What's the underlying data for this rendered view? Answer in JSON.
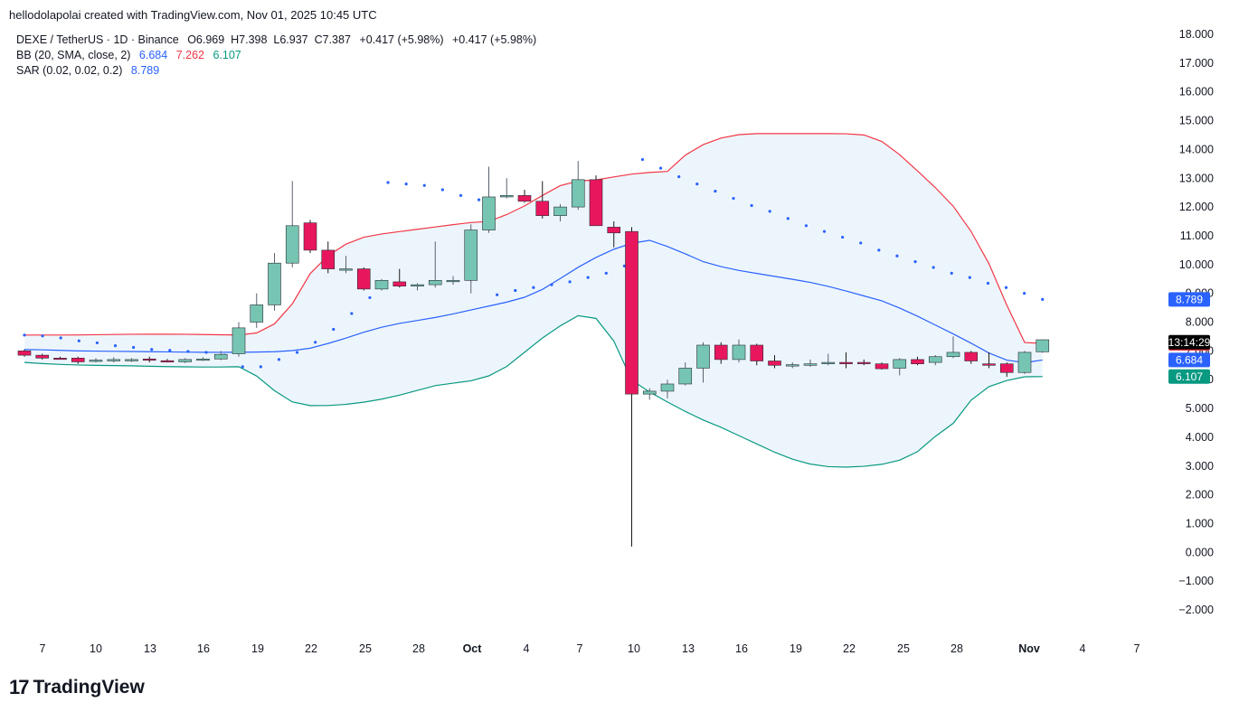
{
  "credit": "hellodolapolai created with TradingView.com, Nov 01, 2025 10:45 UTC",
  "legend": {
    "symbol": "DEXE / TetherUS · 1D · Binance",
    "ohlc": "O6.969  H7.398  L6.937  C7.387",
    "change1": "+0.417 (+5.98%)",
    "change2": "+0.417 (+5.98%)",
    "bb_label": "BB (20, SMA, close, 2)",
    "bb_mid": "6.684",
    "bb_up": "7.262",
    "bb_lo": "6.107",
    "sar_label": "SAR (0.02, 0.02, 0.2)",
    "sar_value": "8.789"
  },
  "brand": {
    "mark": "17",
    "name": "TradingView"
  },
  "colors": {
    "up": "#76c5b2",
    "down": "#e8175d",
    "bb_upper": "#f23645",
    "bb_mid": "#2962ff",
    "bb_lower": "#089981",
    "sar": "#2962ff",
    "fill": "#e9f2fb"
  },
  "chart_data": {
    "type": "candlestick",
    "title": "DEXE / TetherUS · 1D · Binance",
    "y_ticks": [
      "18.000",
      "17.000",
      "16.000",
      "15.000",
      "14.000",
      "13.000",
      "12.000",
      "11.000",
      "10.000",
      "9.000",
      "8.000",
      "7.000",
      "6.000",
      "5.000",
      "4.000",
      "3.000",
      "2.000",
      "1.000",
      "0.000",
      "−1.000",
      "−2.000"
    ],
    "ylim": [
      -2.6,
      18.4
    ],
    "x_ticks": [
      "7",
      "10",
      "13",
      "16",
      "19",
      "22",
      "25",
      "28",
      "Oct",
      "4",
      "7",
      "10",
      "13",
      "16",
      "19",
      "22",
      "25",
      "28",
      "Nov",
      "4",
      "7"
    ],
    "price_labels": [
      {
        "text": "8.789",
        "value": 8.789,
        "color": "#2962ff"
      },
      {
        "text": "",
        "value": 7.262,
        "color": "#f23645"
      },
      {
        "text": "13:14:29",
        "value": 7.3,
        "color": "#000000"
      },
      {
        "text": "6.684",
        "value": 6.684,
        "color": "#2962ff"
      },
      {
        "text": "6.107",
        "value": 6.107,
        "color": "#089981"
      }
    ],
    "candles": [
      {
        "o": 7.0,
        "h": 7.05,
        "l": 6.8,
        "c": 6.85
      },
      {
        "o": 6.85,
        "h": 6.9,
        "l": 6.7,
        "c": 6.75
      },
      {
        "o": 6.75,
        "h": 6.8,
        "l": 6.7,
        "c": 6.72
      },
      {
        "o": 6.75,
        "h": 6.8,
        "l": 6.55,
        "c": 6.62
      },
      {
        "o": 6.65,
        "h": 6.75,
        "l": 6.6,
        "c": 6.68
      },
      {
        "o": 6.68,
        "h": 6.78,
        "l": 6.6,
        "c": 6.7
      },
      {
        "o": 6.68,
        "h": 6.75,
        "l": 6.62,
        "c": 6.7
      },
      {
        "o": 6.72,
        "h": 6.8,
        "l": 6.6,
        "c": 6.68
      },
      {
        "o": 6.66,
        "h": 6.72,
        "l": 6.6,
        "c": 6.65
      },
      {
        "o": 6.62,
        "h": 6.75,
        "l": 6.58,
        "c": 6.7
      },
      {
        "o": 6.7,
        "h": 6.78,
        "l": 6.65,
        "c": 6.72
      },
      {
        "o": 6.72,
        "h": 7.0,
        "l": 6.68,
        "c": 6.88
      },
      {
        "o": 6.9,
        "h": 8.0,
        "l": 6.8,
        "c": 7.8
      },
      {
        "o": 8.0,
        "h": 9.0,
        "l": 7.8,
        "c": 8.6
      },
      {
        "o": 8.6,
        "h": 10.4,
        "l": 8.4,
        "c": 10.05
      },
      {
        "o": 10.05,
        "h": 12.9,
        "l": 9.9,
        "c": 11.35
      },
      {
        "o": 11.45,
        "h": 11.55,
        "l": 10.4,
        "c": 10.5
      },
      {
        "o": 10.5,
        "h": 10.8,
        "l": 9.7,
        "c": 9.85
      },
      {
        "o": 9.85,
        "h": 10.3,
        "l": 9.7,
        "c": 9.85
      },
      {
        "o": 9.85,
        "h": 9.9,
        "l": 9.1,
        "c": 9.15
      },
      {
        "o": 9.15,
        "h": 9.5,
        "l": 9.1,
        "c": 9.45
      },
      {
        "o": 9.4,
        "h": 9.85,
        "l": 9.2,
        "c": 9.25
      },
      {
        "o": 9.25,
        "h": 9.35,
        "l": 9.1,
        "c": 9.3
      },
      {
        "o": 9.3,
        "h": 10.8,
        "l": 9.2,
        "c": 9.45
      },
      {
        "o": 9.45,
        "h": 9.6,
        "l": 9.3,
        "c": 9.45
      },
      {
        "o": 9.45,
        "h": 11.4,
        "l": 9.0,
        "c": 11.2
      },
      {
        "o": 11.2,
        "h": 13.4,
        "l": 11.1,
        "c": 12.35
      },
      {
        "o": 12.35,
        "h": 13.0,
        "l": 12.3,
        "c": 12.4
      },
      {
        "o": 12.4,
        "h": 12.6,
        "l": 12.15,
        "c": 12.2
      },
      {
        "o": 12.2,
        "h": 12.9,
        "l": 11.6,
        "c": 11.7
      },
      {
        "o": 11.7,
        "h": 12.1,
        "l": 11.5,
        "c": 12.0
      },
      {
        "o": 12.0,
        "h": 13.6,
        "l": 11.9,
        "c": 12.95
      },
      {
        "o": 12.95,
        "h": 13.1,
        "l": 11.35,
        "c": 11.35
      },
      {
        "o": 11.3,
        "h": 11.5,
        "l": 10.6,
        "c": 11.1
      },
      {
        "o": 11.15,
        "h": 11.3,
        "l": 0.2,
        "c": 5.5
      },
      {
        "o": 5.5,
        "h": 5.7,
        "l": 5.3,
        "c": 5.6
      },
      {
        "o": 5.6,
        "h": 6.0,
        "l": 5.35,
        "c": 5.85
      },
      {
        "o": 5.85,
        "h": 6.6,
        "l": 5.8,
        "c": 6.4
      },
      {
        "o": 6.4,
        "h": 7.3,
        "l": 5.9,
        "c": 7.2
      },
      {
        "o": 7.2,
        "h": 7.3,
        "l": 6.55,
        "c": 6.7
      },
      {
        "o": 6.7,
        "h": 7.4,
        "l": 6.6,
        "c": 7.2
      },
      {
        "o": 7.2,
        "h": 7.25,
        "l": 6.5,
        "c": 6.65
      },
      {
        "o": 6.65,
        "h": 6.85,
        "l": 6.4,
        "c": 6.5
      },
      {
        "o": 6.5,
        "h": 6.6,
        "l": 6.4,
        "c": 6.52
      },
      {
        "o": 6.5,
        "h": 6.7,
        "l": 6.45,
        "c": 6.55
      },
      {
        "o": 6.55,
        "h": 6.9,
        "l": 6.5,
        "c": 6.6
      },
      {
        "o": 6.6,
        "h": 6.95,
        "l": 6.4,
        "c": 6.55
      },
      {
        "o": 6.6,
        "h": 6.7,
        "l": 6.5,
        "c": 6.58
      },
      {
        "o": 6.55,
        "h": 6.6,
        "l": 6.35,
        "c": 6.38
      },
      {
        "o": 6.4,
        "h": 6.75,
        "l": 6.15,
        "c": 6.7
      },
      {
        "o": 6.7,
        "h": 6.8,
        "l": 6.5,
        "c": 6.55
      },
      {
        "o": 6.6,
        "h": 6.85,
        "l": 6.5,
        "c": 6.8
      },
      {
        "o": 6.8,
        "h": 7.5,
        "l": 6.75,
        "c": 6.95
      },
      {
        "o": 6.95,
        "h": 7.0,
        "l": 6.55,
        "c": 6.65
      },
      {
        "o": 6.55,
        "h": 6.95,
        "l": 6.4,
        "c": 6.5
      },
      {
        "o": 6.55,
        "h": 6.6,
        "l": 6.1,
        "c": 6.25
      },
      {
        "o": 6.25,
        "h": 7.0,
        "l": 6.2,
        "c": 6.95
      },
      {
        "o": 6.969,
        "h": 7.398,
        "l": 6.937,
        "c": 7.387
      }
    ],
    "bb_upper": [
      7.55,
      7.55,
      7.55,
      7.56,
      7.57,
      7.58,
      7.58,
      7.58,
      7.57,
      7.56,
      7.55,
      7.7,
      8.5,
      9.8,
      10.5,
      10.9,
      11.05,
      11.15,
      11.25,
      11.35,
      11.45,
      11.5,
      11.8,
      12.2,
      12.7,
      12.9,
      12.95,
      13.1,
      13.2,
      13.2,
      13.9,
      14.3,
      14.5,
      14.55,
      14.55,
      14.55,
      14.55,
      14.55,
      14.5,
      14.2,
      13.5,
      12.8,
      12.0,
      10.9,
      9.4,
      7.3,
      7.26
    ],
    "bb_mid": [
      7.05,
      7.03,
      7.0,
      6.99,
      6.98,
      6.97,
      6.96,
      6.95,
      6.95,
      6.96,
      6.98,
      7.1,
      7.35,
      7.65,
      7.9,
      8.05,
      8.2,
      8.4,
      8.6,
      8.8,
      9.2,
      9.8,
      10.3,
      10.7,
      10.85,
      10.5,
      10.1,
      9.85,
      9.7,
      9.55,
      9.4,
      9.2,
      8.95,
      8.7,
      8.3,
      7.85,
      7.4,
      6.9,
      6.55,
      6.684
    ],
    "bb_lower": [
      6.6,
      6.55,
      6.52,
      6.5,
      6.49,
      6.48,
      6.46,
      6.45,
      6.44,
      6.44,
      6.45,
      6.0,
      5.3,
      5.1,
      5.1,
      5.15,
      5.25,
      5.4,
      5.6,
      5.8,
      5.9,
      6.0,
      6.3,
      6.9,
      7.5,
      8.0,
      8.4,
      7.7,
      6.0,
      5.5,
      5.1,
      4.7,
      4.4,
      4.05,
      3.7,
      3.35,
      3.1,
      2.98,
      2.96,
      3.0,
      3.1,
      3.35,
      4.0,
      4.55,
      5.6,
      5.9,
      6.1,
      6.107
    ],
    "sar_points": [
      {
        "x": 0,
        "y": 7.55
      },
      {
        "x": 1,
        "y": 7.52
      },
      {
        "x": 2,
        "y": 7.45
      },
      {
        "x": 3,
        "y": 7.35
      },
      {
        "x": 4,
        "y": 7.28
      },
      {
        "x": 5,
        "y": 7.18
      },
      {
        "x": 6,
        "y": 7.12
      },
      {
        "x": 7,
        "y": 7.05
      },
      {
        "x": 8,
        "y": 7.02
      },
      {
        "x": 9,
        "y": 6.98
      },
      {
        "x": 10,
        "y": 6.95
      },
      {
        "x": 11,
        "y": 6.85
      },
      {
        "x": 12,
        "y": 6.45
      },
      {
        "x": 13,
        "y": 6.45
      },
      {
        "x": 14,
        "y": 6.7
      },
      {
        "x": 15,
        "y": 6.95
      },
      {
        "x": 16,
        "y": 7.3
      },
      {
        "x": 17,
        "y": 7.75
      },
      {
        "x": 18,
        "y": 8.3
      },
      {
        "x": 19,
        "y": 8.85
      },
      {
        "x": 20,
        "y": 12.85
      },
      {
        "x": 21,
        "y": 12.8
      },
      {
        "x": 22,
        "y": 12.75
      },
      {
        "x": 23,
        "y": 12.6
      },
      {
        "x": 24,
        "y": 12.4
      },
      {
        "x": 25,
        "y": 12.25
      },
      {
        "x": 26,
        "y": 8.95
      },
      {
        "x": 27,
        "y": 9.1
      },
      {
        "x": 28,
        "y": 9.2
      },
      {
        "x": 29,
        "y": 9.3
      },
      {
        "x": 30,
        "y": 9.4
      },
      {
        "x": 31,
        "y": 9.55
      },
      {
        "x": 32,
        "y": 9.7
      },
      {
        "x": 33,
        "y": 9.95
      },
      {
        "x": 34,
        "y": 13.65
      },
      {
        "x": 35,
        "y": 13.35
      },
      {
        "x": 36,
        "y": 13.05
      },
      {
        "x": 37,
        "y": 12.8
      },
      {
        "x": 38,
        "y": 12.55
      },
      {
        "x": 39,
        "y": 12.3
      },
      {
        "x": 40,
        "y": 12.05
      },
      {
        "x": 41,
        "y": 11.85
      },
      {
        "x": 42,
        "y": 11.6
      },
      {
        "x": 43,
        "y": 11.35
      },
      {
        "x": 44,
        "y": 11.15
      },
      {
        "x": 45,
        "y": 10.95
      },
      {
        "x": 46,
        "y": 10.75
      },
      {
        "x": 47,
        "y": 10.5
      },
      {
        "x": 48,
        "y": 10.3
      },
      {
        "x": 49,
        "y": 10.1
      },
      {
        "x": 50,
        "y": 9.9
      },
      {
        "x": 51,
        "y": 9.7
      },
      {
        "x": 52,
        "y": 9.55
      },
      {
        "x": 53,
        "y": 9.35
      },
      {
        "x": 54,
        "y": 9.2
      },
      {
        "x": 55,
        "y": 9.0
      },
      {
        "x": 56,
        "y": 8.789
      }
    ]
  }
}
